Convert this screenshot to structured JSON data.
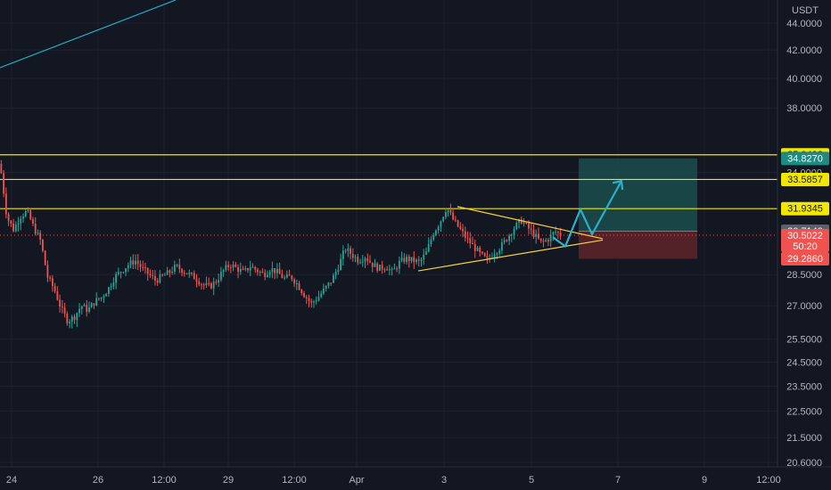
{
  "colors": {
    "background": "#131722",
    "grid": "#1e222d",
    "text": "#b2b5be",
    "candle_up": "#26a69a",
    "candle_down": "#ef5350",
    "horizontal_level": "#f2e700",
    "triangle": "#f5d142",
    "projection": "#2ab1c9",
    "trendline": "#26b1c4",
    "last_price": "#ef5350",
    "long_target_zone": "#1c4a4a",
    "long_stop_zone": "#5a2329",
    "current_line": "#787b86"
  },
  "currency_label": "USDT",
  "chart_data": {
    "type": "candlestick",
    "y_scale": "log",
    "ylim": [
      20.3,
      45.0
    ],
    "y_ticks": [
      "44.0000",
      "42.0000",
      "40.0000",
      "38.0000",
      "34.0000",
      "28.5000",
      "27.0000",
      "25.5000",
      "24.5000",
      "23.5000",
      "22.5000",
      "21.5000",
      "20.6000"
    ],
    "x_ticks": [
      "24",
      "26",
      "12:00",
      "29",
      "12:00",
      "Apr",
      "3",
      "5",
      "7",
      "9",
      "12:00"
    ],
    "horizontal_levels": [
      35.0493,
      33.5857,
      31.9345
    ],
    "price_tags": [
      {
        "label": "35.0493",
        "value": 35.0493,
        "style": "level"
      },
      {
        "label": "34.8270",
        "value": 34.827,
        "style": "target"
      },
      {
        "label": "33.5857",
        "value": 33.5857,
        "style": "level"
      },
      {
        "label": "31.9345",
        "value": 31.9345,
        "style": "level"
      },
      {
        "label": "30.7140",
        "value": 30.714,
        "style": "entry"
      },
      {
        "label": "30.5022",
        "value": 30.5022,
        "style": "last",
        "sublabel": "50:20"
      },
      {
        "label": "29.2860",
        "value": 29.286,
        "style": "stop"
      }
    ],
    "last_price": 30.5022,
    "countdown": "50:20",
    "long_position": {
      "entry": 30.714,
      "target": 34.827,
      "stop": 29.286
    },
    "triangle": {
      "upper": [
        {
          "x": 0.0,
          "y": 32.05
        },
        {
          "x": 6.3,
          "y": 30.32
        }
      ],
      "lower": [
        {
          "x": 0.0,
          "y": 28.68
        },
        {
          "x": 6.3,
          "y": 30.25
        }
      ]
    },
    "projection_path": [
      30.4,
      29.92,
      31.9,
      30.55,
      33.5
    ],
    "price_path": [
      34.5,
      31.5,
      30.8,
      31.5,
      31.8,
      30.9,
      30.2,
      28.4,
      27.8,
      26.9,
      26.3,
      26.5,
      27.0,
      26.8,
      27.2,
      27.4,
      27.8,
      28.4,
      28.7,
      29.0,
      29.2,
      28.8,
      28.5,
      28.2,
      28.4,
      28.6,
      28.9,
      28.7,
      28.5,
      28.3,
      28.0,
      27.9,
      28.2,
      28.7,
      29.0,
      28.8,
      28.6,
      28.9,
      28.7,
      28.5,
      28.8,
      28.6,
      28.3,
      28.4,
      28.0,
      27.5,
      27.1,
      27.4,
      27.8,
      28.2,
      28.9,
      29.8,
      29.5,
      29.2,
      29.4,
      29.0,
      28.8,
      28.9,
      28.6,
      29.1,
      29.3,
      29.2,
      29.1,
      29.6,
      30.6,
      31.2,
      32.0,
      31.3,
      30.8,
      30.3,
      29.9,
      29.5,
      29.2,
      29.6,
      29.9,
      30.4,
      30.9,
      31.3,
      30.9,
      30.5,
      30.1,
      30.3,
      30.7,
      30.5022
    ]
  }
}
